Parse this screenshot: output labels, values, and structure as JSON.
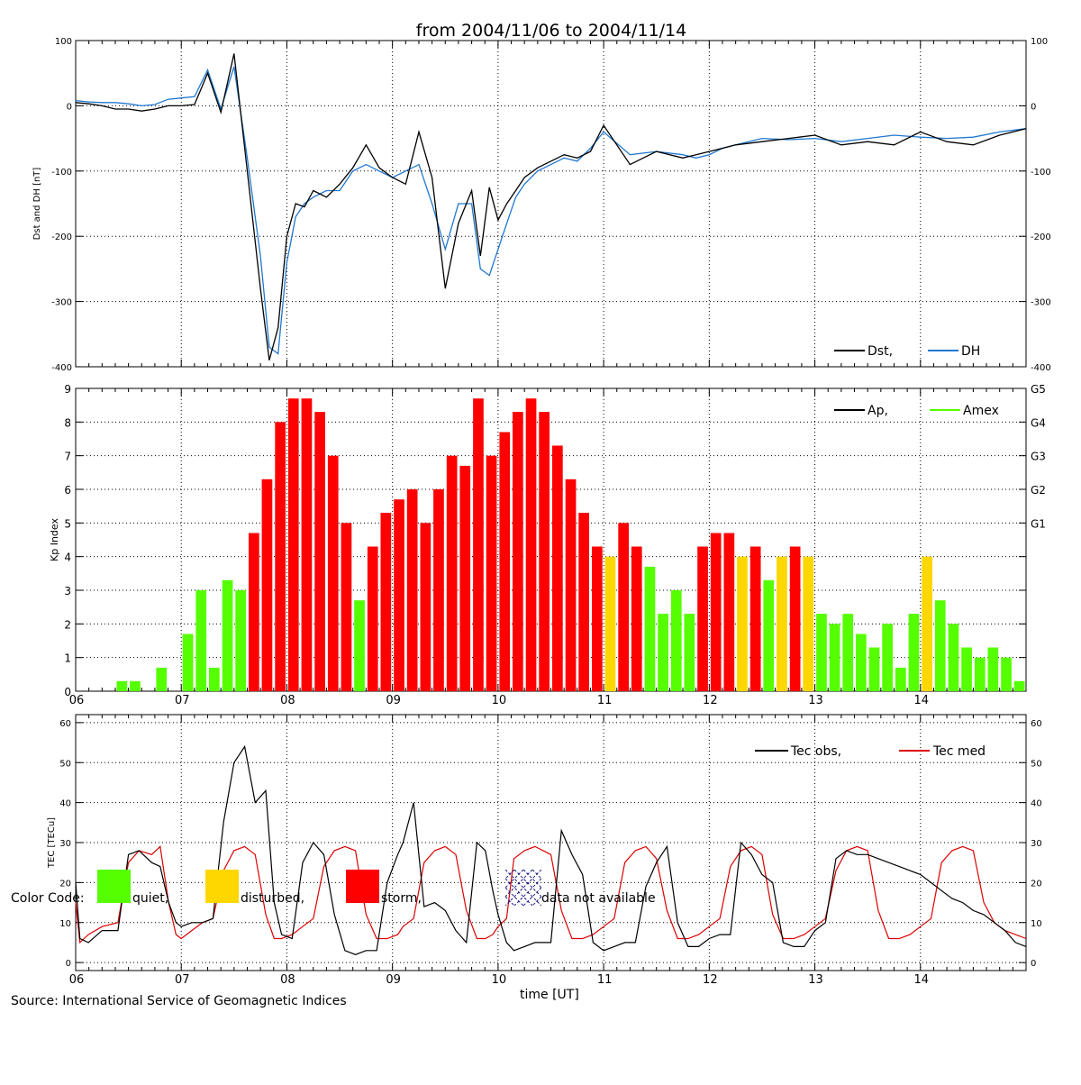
{
  "page": {
    "title": "from 2004/11/06 to 2004/11/14",
    "source": "Source: International Service of Geomagnetic Indices",
    "xlabel": "time [UT]",
    "day_labels": [
      "06",
      "07",
      "08",
      "09",
      "10",
      "11",
      "12",
      "13",
      "14"
    ]
  },
  "colors": {
    "quiet": "#55ff00",
    "disturbed": "#ffd700",
    "storm": "#ff0000",
    "dst": "#000000",
    "dh": "#1f78d1",
    "ap": "#000000",
    "amex": "#55ff00",
    "tec_obs": "#000000",
    "tec_med": "#dd0000",
    "na_hatch": "#1a1a80"
  },
  "color_code": {
    "label": "Color Code:",
    "quiet": "quiet,",
    "disturbed": "disturbed,",
    "storm": "storm,",
    "na": "data not available"
  },
  "chart_data": [
    {
      "type": "line",
      "ylabel": "Dst and DH [nT]",
      "ylim": [
        -400,
        100
      ],
      "yticks": [
        100,
        0,
        -100,
        -200,
        -300,
        -400
      ],
      "legend": [
        "Dst,",
        "DH"
      ],
      "x_days": [
        0,
        0.125,
        0.25,
        0.375,
        0.5,
        0.625,
        0.75,
        0.875,
        1,
        1.125,
        1.25,
        1.375,
        1.5,
        1.625,
        1.75,
        1.833,
        1.917,
        2,
        2.083,
        2.167,
        2.25,
        2.375,
        2.5,
        2.625,
        2.75,
        2.875,
        3,
        3.125,
        3.25,
        3.375,
        3.5,
        3.625,
        3.75,
        3.833,
        3.917,
        4,
        4.083,
        4.167,
        4.25,
        4.375,
        4.5,
        4.625,
        4.75,
        4.875,
        5,
        5.25,
        5.5,
        5.75,
        5.875,
        6,
        6.125,
        6.25,
        6.5,
        6.75,
        7,
        7.25,
        7.5,
        7.75,
        8,
        8.25,
        8.5,
        8.75,
        9
      ],
      "series": [
        {
          "name": "Dst",
          "values": [
            5,
            3,
            0,
            -5,
            -5,
            -8,
            -5,
            0,
            0,
            2,
            50,
            -10,
            80,
            -100,
            -280,
            -390,
            -340,
            -200,
            -150,
            -155,
            -130,
            -140,
            -120,
            -95,
            -60,
            -95,
            -110,
            -120,
            -40,
            -110,
            -280,
            -180,
            -130,
            -230,
            -125,
            -175,
            -150,
            -130,
            -110,
            -95,
            -85,
            -75,
            -80,
            -70,
            -30,
            -90,
            -70,
            -80,
            -75,
            -70,
            -65,
            -60,
            -55,
            -50,
            -45,
            -60,
            -55,
            -60,
            -40,
            -55,
            -60,
            -45,
            -35
          ]
        },
        {
          "name": "DH",
          "values": [
            8,
            6,
            5,
            5,
            3,
            0,
            2,
            10,
            12,
            14,
            55,
            -5,
            60,
            -80,
            -230,
            -370,
            -380,
            -240,
            -170,
            -150,
            -140,
            -130,
            -130,
            -100,
            -90,
            -100,
            -110,
            -100,
            -90,
            -150,
            -220,
            -150,
            -150,
            -250,
            -260,
            -220,
            -180,
            -140,
            -120,
            -100,
            -90,
            -80,
            -85,
            -65,
            -40,
            -75,
            -70,
            -75,
            -80,
            -75,
            -65,
            -60,
            -50,
            -52,
            -50,
            -55,
            -50,
            -45,
            -48,
            -50,
            -48,
            -40,
            -35
          ]
        }
      ]
    },
    {
      "type": "bar",
      "ylabel": "Kp Index",
      "ylim": [
        0,
        9
      ],
      "yticks": [
        0,
        1,
        2,
        3,
        4,
        5,
        6,
        7,
        8,
        9
      ],
      "g_scale": [
        "G1",
        "G2",
        "G3",
        "G4",
        "G5"
      ],
      "legend": [
        "Ap,",
        "Amex"
      ],
      "bar_hours": 3,
      "values": [
        0.0,
        0.0,
        0.0,
        0.3,
        0.3,
        0.0,
        0.7,
        0.0,
        1.7,
        3.0,
        0.7,
        3.3,
        3.0,
        4.7,
        6.3,
        8.0,
        8.7,
        8.7,
        8.3,
        7.0,
        5.0,
        2.7,
        4.3,
        5.3,
        5.7,
        6.0,
        5.0,
        6.0,
        7.0,
        6.7,
        8.7,
        7.0,
        7.7,
        8.3,
        8.7,
        8.3,
        7.3,
        6.3,
        5.3,
        4.3,
        4.0,
        5.0,
        4.3,
        3.7,
        2.3,
        3.0,
        2.3,
        4.3,
        4.7,
        4.7,
        4.0,
        4.3,
        3.3,
        4.0,
        4.3,
        4.0,
        2.3,
        2.0,
        2.3,
        1.7,
        1.3,
        2.0,
        0.7,
        2.3,
        4.0,
        2.7,
        2.0,
        1.3,
        1.0,
        1.3,
        1.0,
        0.3
      ]
    },
    {
      "type": "line",
      "ylabel": "TEC [TECu]",
      "ylim": [
        0,
        60
      ],
      "yticks": [
        0,
        10,
        20,
        30,
        40,
        50,
        60
      ],
      "legend": [
        "Tec obs,",
        "Tec med"
      ],
      "x_days": [
        0,
        0.04,
        0.12,
        0.25,
        0.4,
        0.5,
        0.6,
        0.72,
        0.8,
        0.88,
        0.95,
        1.0,
        1.1,
        1.2,
        1.3,
        1.4,
        1.5,
        1.6,
        1.7,
        1.8,
        1.88,
        1.95,
        2.05,
        2.15,
        2.25,
        2.35,
        2.45,
        2.55,
        2.65,
        2.75,
        2.85,
        2.95,
        3.05,
        3.1,
        3.2,
        3.3,
        3.4,
        3.5,
        3.6,
        3.7,
        3.8,
        3.88,
        3.95,
        4.0,
        4.08,
        4.15,
        4.25,
        4.35,
        4.5,
        4.6,
        4.7,
        4.8,
        4.9,
        5.0,
        5.1,
        5.2,
        5.3,
        5.4,
        5.5,
        5.6,
        5.7,
        5.8,
        5.9,
        6.0,
        6.1,
        6.2,
        6.3,
        6.4,
        6.5,
        6.6,
        6.7,
        6.8,
        6.9,
        7.0,
        7.1,
        7.2,
        7.3,
        7.4,
        7.5,
        7.6,
        7.7,
        7.8,
        7.9,
        8.0,
        8.1,
        8.2,
        8.3,
        8.4,
        8.5,
        8.6,
        8.7,
        8.8,
        8.9,
        9.0
      ],
      "series": [
        {
          "name": "Tec obs",
          "values": [
            20,
            6,
            5,
            8,
            8,
            27,
            28,
            25,
            24,
            15,
            10,
            9,
            10,
            10,
            11,
            35,
            50,
            54,
            40,
            43,
            15,
            7,
            6,
            25,
            30,
            27,
            12,
            3,
            2,
            3,
            3,
            20,
            27,
            30,
            40,
            14,
            15,
            13,
            8,
            5,
            30,
            28,
            18,
            12,
            5,
            3,
            4,
            5,
            5,
            33,
            27,
            22,
            5,
            3,
            4,
            5,
            5,
            19,
            25,
            29,
            10,
            4,
            4,
            6,
            7,
            7,
            30,
            27,
            22,
            20,
            5,
            4,
            4,
            8,
            10,
            26,
            28,
            27,
            27,
            26,
            25,
            24,
            23,
            22,
            20,
            18,
            16,
            15,
            13,
            12,
            10,
            8,
            5,
            4
          ]
        },
        {
          "name": "Tec med",
          "values": [
            15,
            5,
            7,
            9,
            10,
            25,
            28,
            27,
            29,
            15,
            7,
            6,
            8,
            10,
            11,
            23,
            28,
            29,
            27,
            12,
            6,
            6,
            7,
            9,
            11,
            24,
            28,
            29,
            28,
            12,
            6,
            6,
            7,
            9,
            11,
            25,
            28,
            29,
            27,
            13,
            6,
            6,
            7,
            9,
            11,
            26,
            28,
            29,
            27,
            13,
            6,
            6,
            7,
            9,
            11,
            25,
            28,
            29,
            26,
            13,
            6,
            6,
            7,
            9,
            11,
            24,
            28,
            29,
            27,
            12,
            6,
            6,
            7,
            9,
            11,
            23,
            28,
            29,
            28,
            13,
            6,
            6,
            7,
            9,
            11,
            25,
            28,
            29,
            28,
            15,
            10,
            8,
            7,
            6
          ]
        }
      ]
    }
  ]
}
